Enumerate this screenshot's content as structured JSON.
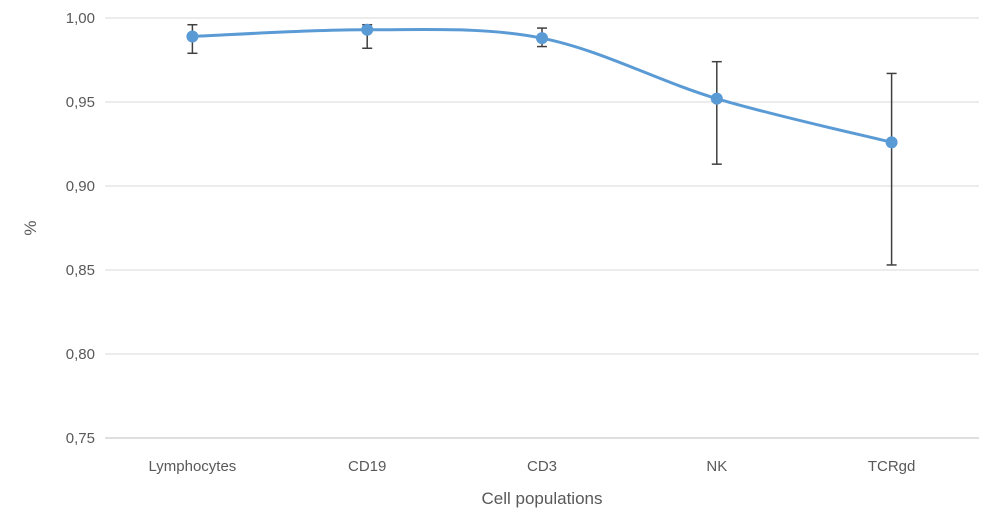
{
  "chart_data": {
    "type": "line",
    "categories": [
      "Lymphocytes",
      "CD19",
      "CD3",
      "NK",
      "TCRgd"
    ],
    "series": [
      {
        "values": [
          0.989,
          0.993,
          0.988,
          0.952,
          0.926
        ],
        "err_low": [
          0.979,
          0.982,
          0.983,
          0.913,
          0.853
        ],
        "err_high": [
          0.996,
          0.996,
          0.994,
          0.974,
          0.967
        ],
        "color": "#5b9bd5",
        "smooth": true
      }
    ],
    "title": "",
    "xlabel": "Cell populations",
    "ylabel": "%",
    "ylim": [
      0.75,
      1.0
    ],
    "yticks": [
      0.75,
      0.8,
      0.85,
      0.9,
      0.95,
      1.0
    ],
    "ytick_labels": [
      "0,75",
      "0,80",
      "0,85",
      "0,90",
      "0,95",
      "1,00"
    ],
    "grid": true,
    "legend": "none"
  }
}
